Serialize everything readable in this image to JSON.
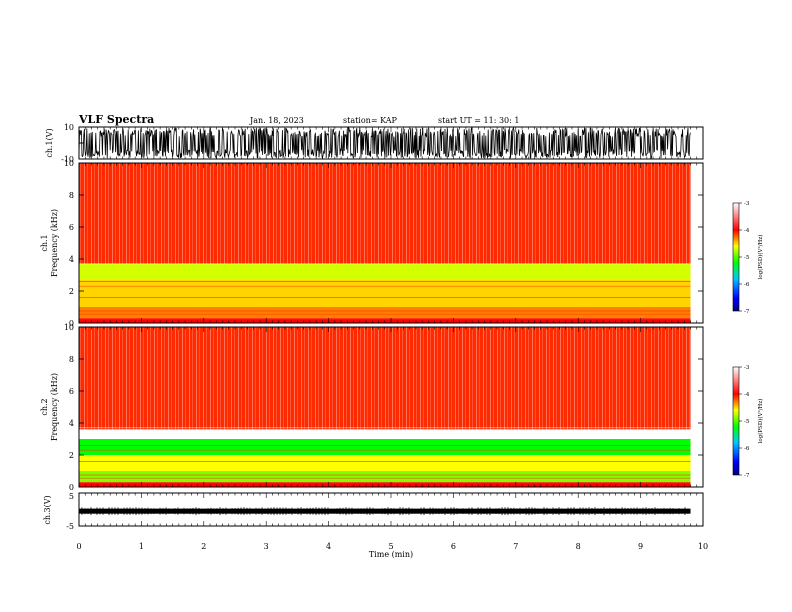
{
  "header": {
    "title": "VLF Spectra",
    "date": "Jan. 18, 2023",
    "station": "station= KAP",
    "start": "start  UT =   11: 30: 1"
  },
  "chart_data": [
    {
      "type": "line",
      "name": "channel-1-waveform",
      "ylabel": "ch.1(V)",
      "ylim": [
        -10,
        10
      ],
      "yticks": [
        "10",
        "-10"
      ],
      "xlim": [
        0,
        10
      ],
      "description_values": "dense waveform filling most of the range, amplitude ~ +/-8 V"
    },
    {
      "type": "heatmap",
      "name": "channel-1-spectrogram",
      "ylabel_top": "ch.1",
      "ylabel": "Frequency  (kHz)",
      "ylim": [
        0,
        10
      ],
      "yticks": [
        "0",
        "2",
        "4",
        "6",
        "8",
        "10"
      ],
      "xlim": [
        0,
        9.8
      ],
      "bands": [
        {
          "from": 3.7,
          "to": 10,
          "level": -4.1
        },
        {
          "from": 2.7,
          "to": 3.7,
          "level": -4.7
        },
        {
          "from": 1.0,
          "to": 2.7,
          "level": -4.5
        },
        {
          "from": 0.3,
          "to": 1.0,
          "level": -4.3
        },
        {
          "from": 0,
          "to": 0.3,
          "level": -4.0
        }
      ],
      "colorbar": {
        "label": "log(PSD)(V²/Hz)",
        "ticks": [
          "-3",
          "-4",
          "-5",
          "-6",
          "-7"
        ],
        "range": [
          -7,
          -3
        ]
      }
    },
    {
      "type": "heatmap",
      "name": "channel-2-spectrogram",
      "ylabel_top": "ch.2",
      "ylabel": "Frequency  (kHz)",
      "ylim": [
        0,
        10
      ],
      "yticks": [
        "0",
        "2",
        "4",
        "6",
        "8",
        "10"
      ],
      "xlim": [
        0,
        9.8
      ],
      "bands": [
        {
          "from": 3.6,
          "to": 10,
          "level": -4.1
        },
        {
          "from": 2.0,
          "to": 3.0,
          "level": -5.2
        },
        {
          "from": 1.0,
          "to": 2.0,
          "level": -4.6
        },
        {
          "from": 0.3,
          "to": 1.0,
          "level": -4.9
        },
        {
          "from": 0,
          "to": 0.3,
          "level": -4.0
        }
      ],
      "colorbar": {
        "label": "log(PSD)(V²/Hz)",
        "ticks": [
          "-3",
          "-4",
          "-5",
          "-6",
          "-7"
        ],
        "range": [
          -7,
          -3
        ]
      }
    },
    {
      "type": "line",
      "name": "channel-3-waveform",
      "ylabel": "ch.3(V)",
      "ylim": [
        -5,
        5
      ],
      "yticks": [
        "5",
        "-5"
      ],
      "xlim": [
        0,
        10
      ],
      "level": -0.5
    }
  ],
  "time_axis": {
    "xlabel": "Time  (min)",
    "ticks": [
      "0",
      "1",
      "2",
      "3",
      "4",
      "5",
      "6",
      "7",
      "8",
      "9",
      "10"
    ]
  },
  "colors": {
    "colormap": [
      "#00007f",
      "#0000ff",
      "#00ffff",
      "#00ff00",
      "#ffff00",
      "#ff0000",
      "#ffffff"
    ]
  }
}
